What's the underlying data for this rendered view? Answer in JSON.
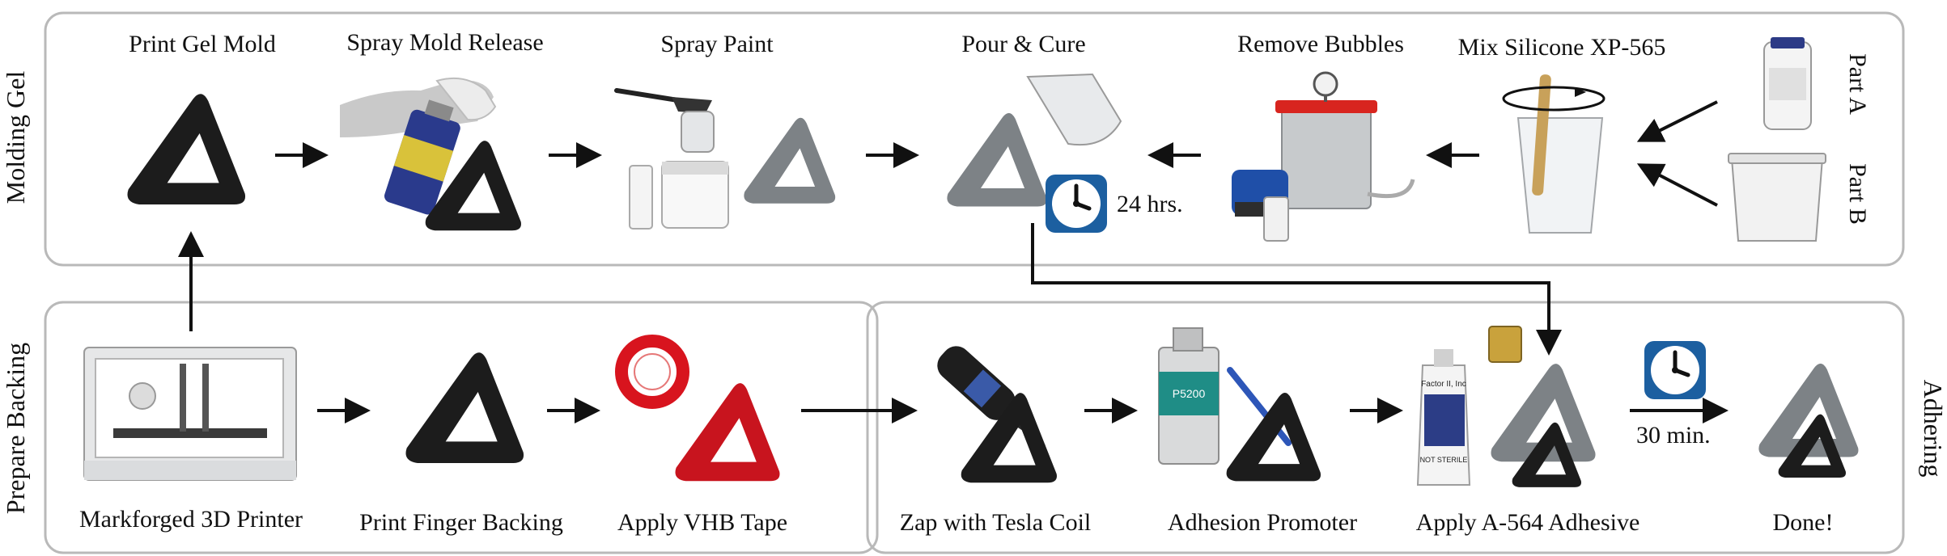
{
  "panels": {
    "molding_gel": "Molding Gel",
    "prepare_backing": "Prepare Backing",
    "adhering": "Adhering"
  },
  "steps": {
    "print_gel_mold": "Print Gel Mold",
    "spray_mold_release": "Spray Mold Release",
    "spray_paint": "Spray Paint",
    "pour_cure": "Pour & Cure",
    "remove_bubbles": "Remove Bubbles",
    "mix_silicone": "Mix Silicone XP-565",
    "markforged_printer": "Markforged 3D Printer",
    "print_finger_backing": "Print Finger Backing",
    "apply_vhb_tape": "Apply VHB Tape",
    "zap_tesla_coil": "Zap with Tesla Coil",
    "adhesion_promoter": "Adhesion Promoter",
    "apply_adhesive": "Apply A-564 Adhesive",
    "done": "Done!"
  },
  "parts": {
    "part_a": "Part A",
    "part_b": "Part B"
  },
  "timers": {
    "cure_time": "24 hrs.",
    "adhesive_time": "30 min."
  },
  "product_labels": {
    "promoter_can": "P5200",
    "adhesive_tube": "Factor II, Inc",
    "adhesive_tube_note": "NOT STERILE",
    "printer_brand": "Markforged"
  },
  "colors": {
    "black_part": "#1c1c1c",
    "gray_gel": "#7d8286",
    "red_tape": "#c8141e",
    "clock_blue": "#1c5fa0",
    "panel_border": "#b9b9b9"
  }
}
